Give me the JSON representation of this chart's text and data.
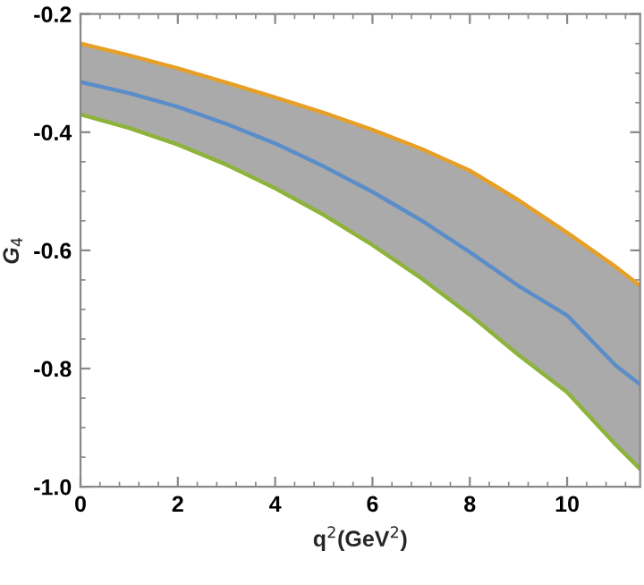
{
  "chart_data": {
    "type": "line",
    "xlabel": "q$^{2}$(GeV$^{2}$)",
    "ylabel": "G$_{4}$",
    "x": [
      0,
      1,
      2,
      3,
      4,
      5,
      6,
      7,
      8,
      9,
      10,
      11,
      11.5
    ],
    "series": [
      {
        "color": "#e69f27",
        "values": [
          -0.25,
          -0.27,
          -0.292,
          -0.316,
          -0.341,
          -0.367,
          -0.396,
          -0.428,
          -0.465,
          -0.515,
          -0.57,
          -0.628,
          -0.66
        ]
      },
      {
        "color": "#5b8dc9",
        "values": [
          -0.315,
          -0.334,
          -0.357,
          -0.386,
          -0.419,
          -0.458,
          -0.501,
          -0.549,
          -0.603,
          -0.66,
          -0.71,
          -0.795,
          -0.827
        ],
        "lower": [
          -0.37,
          -0.393,
          -0.421,
          -0.455,
          -0.495,
          -0.54,
          -0.591,
          -0.647,
          -0.709,
          -0.777,
          -0.84,
          -0.929,
          -0.97
        ],
        "upper": [
          -0.25,
          -0.27,
          -0.292,
          -0.316,
          -0.341,
          -0.367,
          -0.396,
          -0.428,
          -0.465,
          -0.515,
          -0.57,
          -0.628,
          -0.66
        ]
      },
      {
        "color": "#8db33a",
        "values": [
          -0.37,
          -0.393,
          -0.421,
          -0.455,
          -0.495,
          -0.54,
          -0.591,
          -0.647,
          -0.709,
          -0.777,
          -0.84,
          -0.929,
          -0.97
        ]
      }
    ],
    "xlim": [
      0,
      11.5
    ],
    "ylim": [
      -1.0,
      -0.2
    ],
    "xticks": [
      0,
      2,
      4,
      6,
      8,
      10
    ],
    "yticks": [
      {
        "value": -1.0,
        "label": "-1.0"
      },
      {
        "value": -0.8,
        "label": "-0.8"
      },
      {
        "value": -0.6,
        "label": "-0.6"
      },
      {
        "value": -0.4,
        "label": "-0.4"
      },
      {
        "value": -0.2,
        "label": "-0.2"
      }
    ],
    "grid": false,
    "legend": false,
    "marker": "none",
    "line_style": "solid"
  }
}
